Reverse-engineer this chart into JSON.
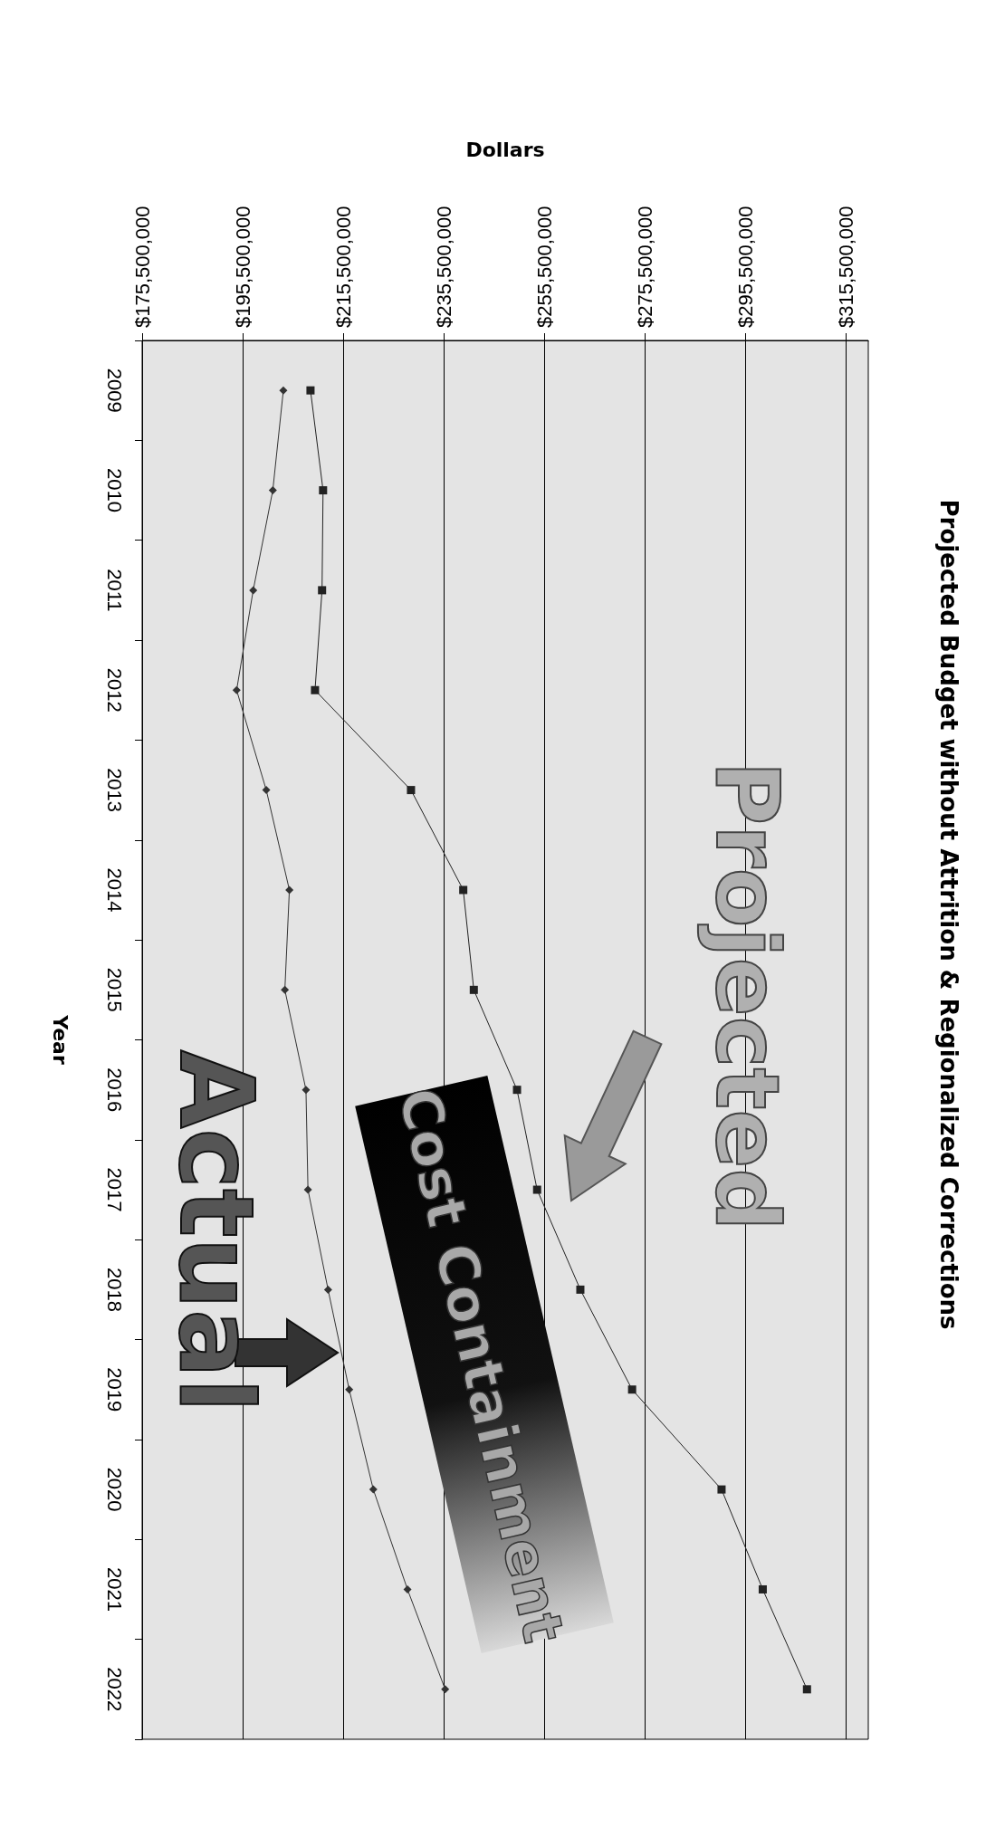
{
  "chart_data": {
    "type": "line",
    "orientation": "horizontal",
    "title": "Projected Budget without Attrition & Regionalized Corrections",
    "xlabel": "Dollars",
    "ylabel": "Year",
    "categories": [
      "2009",
      "2010",
      "2011",
      "2012",
      "2013",
      "2014",
      "2015",
      "2016",
      "2017",
      "2018",
      "2019",
      "2020",
      "2021",
      "2022"
    ],
    "series": [
      {
        "name": "Projected",
        "color": "#222222",
        "marker": "square",
        "values": [
          209000000,
          211500000,
          211300000,
          209900000,
          229000000,
          239400000,
          241500000,
          250100000,
          254100000,
          262700000,
          273000000,
          290800000,
          299000000,
          307800000
        ]
      },
      {
        "name": "Actual",
        "color": "#333333",
        "marker": "diamond",
        "values": [
          203600000,
          201500000,
          197600000,
          194300000,
          200200000,
          204800000,
          203900000,
          208100000,
          208500000,
          212500000,
          216700000,
          221500000,
          228300000,
          235800000
        ]
      }
    ],
    "xlim": [
      175500000,
      320000000
    ],
    "xticks": [
      {
        "value": 175500000,
        "label": "$175,500,000"
      },
      {
        "value": 195500000,
        "label": "$195,500,000"
      },
      {
        "value": 215500000,
        "label": "$215,500,000"
      },
      {
        "value": 235500000,
        "label": "$235,500,000"
      },
      {
        "value": 255500000,
        "label": "$255,500,000"
      },
      {
        "value": 275500000,
        "label": "$275,500,000"
      },
      {
        "value": 295500000,
        "label": "$295,500,000"
      },
      {
        "value": 315500000,
        "label": "$315,500,000"
      }
    ],
    "annotations": [
      "Cost Containment"
    ],
    "grid": "x",
    "legend": false,
    "line_style": "solid"
  }
}
